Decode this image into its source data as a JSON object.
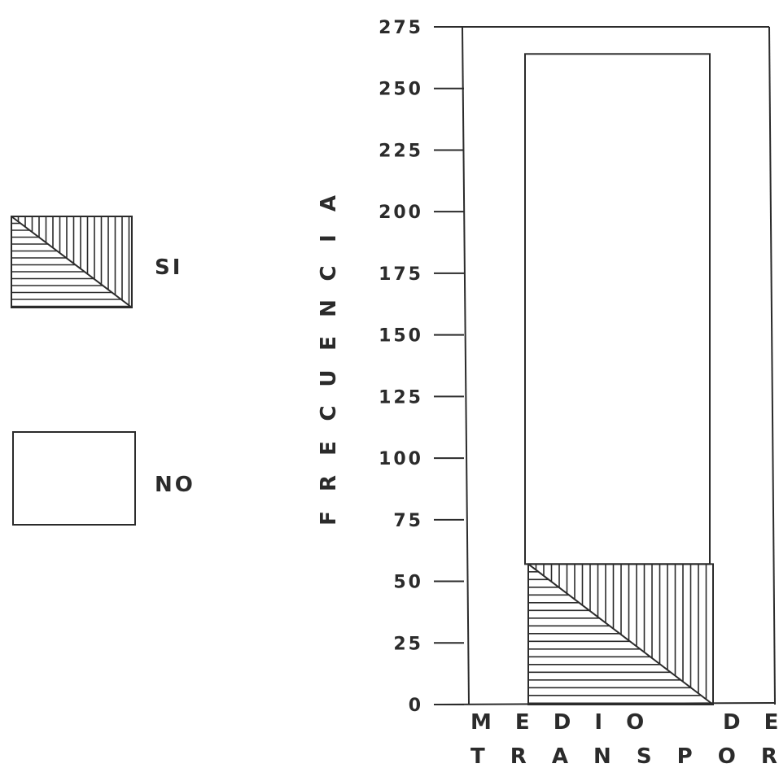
{
  "chart_data": {
    "type": "bar",
    "stacked": true,
    "categories": [
      ""
    ],
    "series": [
      {
        "name": "SI",
        "values": [
          57
        ],
        "pattern": "hatched"
      },
      {
        "name": "NO",
        "values": [
          207
        ],
        "pattern": "none"
      }
    ],
    "xlabel": "M E D I O   D E   T R A N S P O R T E",
    "xlabel_lines": [
      "M E D I O",
      "D E",
      "T R A N S P O R T E"
    ],
    "ylabel": "FRECUENCIA",
    "ylim": [
      0,
      275
    ],
    "yticks": [
      "0",
      "25",
      "50",
      "75",
      "100",
      "125",
      "150",
      "175",
      "200",
      "225",
      "250",
      "275"
    ],
    "grid": false,
    "legend_placement": "left"
  },
  "legend": {
    "items": [
      {
        "label": "SI",
        "pattern": "hatched"
      },
      {
        "label": "NO",
        "pattern": "none"
      }
    ]
  },
  "colors": {
    "ink": "#2b2b2b",
    "background": "#ffffff"
  }
}
